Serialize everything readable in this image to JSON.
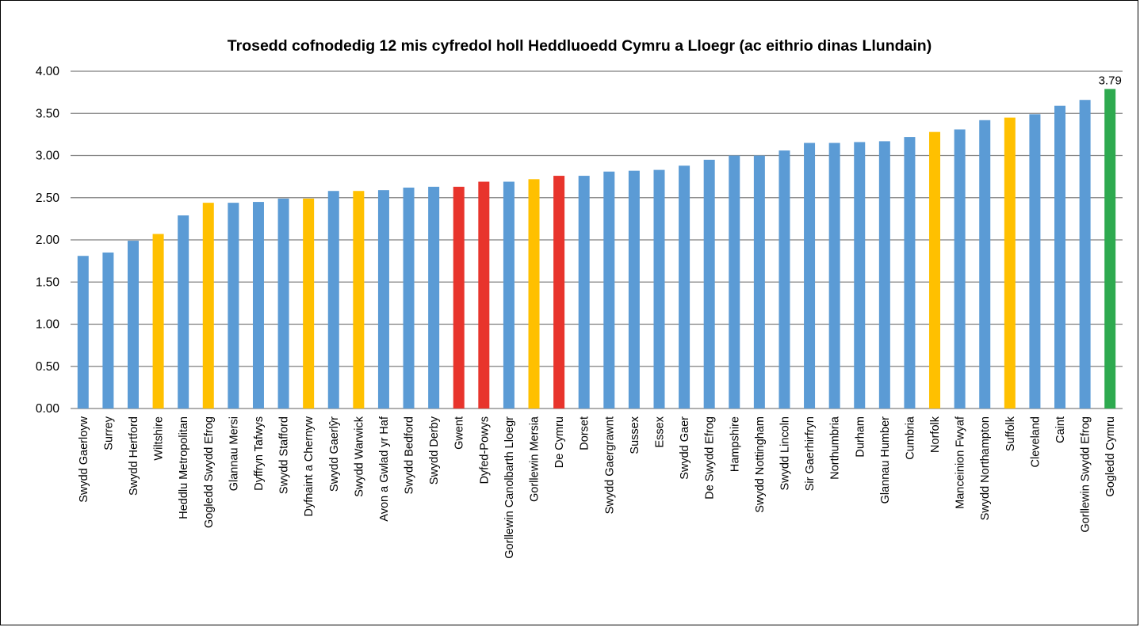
{
  "chart_data": {
    "type": "bar",
    "title": "Trosedd cofnodedig 12 mis cyfredol holl Heddluoedd Cymru a Lloegr (ac eithrio dinas Llundain)",
    "xlabel": "",
    "ylabel": "",
    "ylim": [
      0,
      4
    ],
    "yticks": [
      "0.00",
      "0.50",
      "1.00",
      "1.50",
      "2.00",
      "2.50",
      "3.00",
      "3.50",
      "4.00"
    ],
    "grid": true,
    "legend": "none",
    "colors": {
      "default": "#5b9bd5",
      "highlight_yellow": "#ffc000",
      "highlight_red": "#e8342c",
      "highlight_green": "#2eaa4f"
    },
    "categories": [
      "Swydd Gaerloyw",
      "Surrey",
      "Swydd Hertford",
      "Wiltshire",
      "Heddlu Metropolitan",
      "Gogledd Swydd Efrog",
      "Glannau Mersi",
      "Dyffryn Tafwys",
      "Swydd Stafford",
      "Dyfnaint a Chernyw",
      "Swydd Gaerlŷr",
      "Swydd Warwick",
      "Avon a Gwlad yr Haf",
      "Swydd Bedford",
      "Swydd Derby",
      "Gwent",
      "Dyfed-Powys",
      "Gorllewin Canolbarth Lloegr",
      "Gorllewin Mersia",
      "De Cymru",
      "Dorset",
      "Swydd Gaergrawnt",
      "Sussex",
      "Essex",
      "Swydd Gaer",
      "De Swydd Efrog",
      "Hampshire",
      "Swydd Nottingham",
      "Swydd Lincoln",
      "Sir Gaerhirfryn",
      "Northumbria",
      "Durham",
      "Glannau Humber",
      "Cumbria",
      "Norfolk",
      "Manceinion Fwyaf",
      "Swydd Northampton",
      "Suffolk",
      "Cleveland",
      "Caint",
      "Gorllewin Swydd Efrog",
      "Gogledd Cymru"
    ],
    "values": [
      1.81,
      1.85,
      1.99,
      2.07,
      2.29,
      2.44,
      2.44,
      2.45,
      2.49,
      2.49,
      2.58,
      2.58,
      2.59,
      2.62,
      2.63,
      2.63,
      2.69,
      2.69,
      2.72,
      2.76,
      2.76,
      2.81,
      2.82,
      2.83,
      2.88,
      2.95,
      3.0,
      3.0,
      3.06,
      3.15,
      3.15,
      3.16,
      3.17,
      3.22,
      3.28,
      3.31,
      3.42,
      3.45,
      3.49,
      3.59,
      3.66,
      3.79
    ],
    "bar_colors": [
      "#5b9bd5",
      "#5b9bd5",
      "#5b9bd5",
      "#ffc000",
      "#5b9bd5",
      "#ffc000",
      "#5b9bd5",
      "#5b9bd5",
      "#5b9bd5",
      "#ffc000",
      "#5b9bd5",
      "#ffc000",
      "#5b9bd5",
      "#5b9bd5",
      "#5b9bd5",
      "#e8342c",
      "#e8342c",
      "#5b9bd5",
      "#ffc000",
      "#e8342c",
      "#5b9bd5",
      "#5b9bd5",
      "#5b9bd5",
      "#5b9bd5",
      "#5b9bd5",
      "#5b9bd5",
      "#5b9bd5",
      "#5b9bd5",
      "#5b9bd5",
      "#5b9bd5",
      "#5b9bd5",
      "#5b9bd5",
      "#5b9bd5",
      "#5b9bd5",
      "#ffc000",
      "#5b9bd5",
      "#5b9bd5",
      "#ffc000",
      "#5b9bd5",
      "#5b9bd5",
      "#5b9bd5",
      "#2eaa4f"
    ],
    "data_labels": [
      {
        "index": 41,
        "text": "3.79"
      }
    ]
  }
}
